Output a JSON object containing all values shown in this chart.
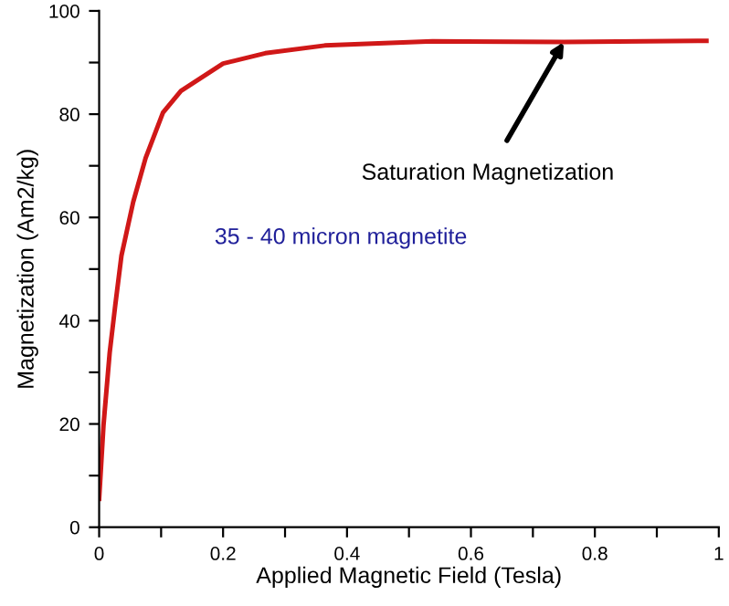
{
  "chart_data": {
    "type": "line",
    "xlabel": "Applied Magnetic Field (Tesla)",
    "ylabel": "Magnetization (Am2/kg)",
    "x": [
      0,
      0.007,
      0.017,
      0.026,
      0.036,
      0.055,
      0.075,
      0.103,
      0.132,
      0.2,
      0.268,
      0.364,
      0.538,
      0.75,
      0.98
    ],
    "series": [
      {
        "color": "#d01818",
        "values": [
          5.5,
          19.7,
          33.8,
          43,
          52.6,
          63,
          71.5,
          80.3,
          84.5,
          89.8,
          91.8,
          93.3,
          94.1,
          94,
          94.2
        ]
      }
    ],
    "xlim": [
      0,
      1
    ],
    "ylim": [
      0,
      100
    ],
    "xticks": [
      0,
      {
        "value": 0.1,
        "label": null
      },
      0.2,
      {
        "value": 0.3,
        "label": null
      },
      0.4,
      {
        "value": 0.5,
        "label": null
      },
      0.6,
      {
        "value": 0.7,
        "label": null
      },
      0.8,
      {
        "value": 0.9,
        "label": null
      },
      1
    ],
    "yticks": [
      0,
      {
        "value": 10,
        "label": null
      },
      20,
      {
        "value": 30,
        "label": null
      },
      40,
      {
        "value": 50,
        "label": null
      },
      60,
      {
        "value": 70,
        "label": null
      },
      80,
      {
        "value": 90,
        "label": null
      },
      100
    ],
    "annotations": [
      {
        "text": "Saturation Magnetization",
        "x": 0.75,
        "y": 94
      },
      "35 - 40 micron magnetite"
    ],
    "grid": false,
    "marker": "none",
    "line_style": "solid"
  }
}
